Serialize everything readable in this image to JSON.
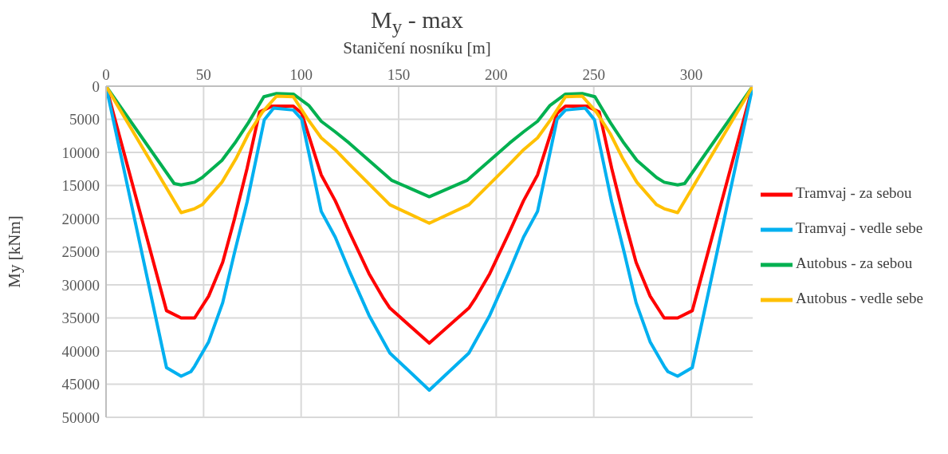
{
  "chart_data": {
    "type": "line",
    "title": "M$_{y}$ - max",
    "xlabel": "Staničení nosníku [m]",
    "ylabel": "My [kNm]",
    "xlim": [
      0,
      331.5
    ],
    "xticks": [
      0,
      50,
      100,
      150,
      200,
      250,
      300
    ],
    "ylim": [
      50000,
      0
    ],
    "yticks": [
      0,
      5000,
      10000,
      15000,
      20000,
      25000,
      30000,
      35000,
      40000,
      45000,
      50000
    ],
    "grid": true,
    "legend": "right",
    "marker": "none",
    "line_style": "solid",
    "series": [
      {
        "name": "Tramvaj - za sebou",
        "color": "#ff0000",
        "x": [
          0,
          31,
          38.5,
          45.4,
          52.6,
          59.8,
          65.8,
          72.3,
          78.7,
          85.2,
          96,
          100.3,
          110.3,
          117.5,
          124.7,
          134.8,
          141.9,
          145.5,
          165.7,
          186,
          189.6,
          196.7,
          206.8,
          214,
          221.2,
          231.2,
          235.5,
          246.3,
          252.8,
          259.2,
          265.7,
          271.7,
          278.9,
          286.1,
          293,
          300.5,
          331.5
        ],
        "values": [
          0,
          33900,
          35000,
          35000,
          31700,
          26600,
          20100,
          12400,
          3900,
          3000,
          3000,
          4100,
          13400,
          17300,
          22000,
          28300,
          31900,
          33500,
          38800,
          33500,
          31900,
          28300,
          22000,
          17300,
          13400,
          4100,
          3000,
          3000,
          3900,
          12400,
          20100,
          26600,
          31700,
          35000,
          35000,
          33900,
          0
        ]
      },
      {
        "name": "Tramvaj - vedle sebe",
        "color": "#00b0f0",
        "x": [
          0,
          31,
          38.5,
          43.5,
          45.4,
          52.6,
          59.8,
          65.8,
          72.3,
          81.1,
          85.9,
          96,
          100.3,
          110.3,
          117.5,
          124.7,
          134.8,
          145.5,
          165.7,
          186,
          196.7,
          206.8,
          214,
          221.2,
          231.2,
          235.5,
          245.6,
          250.4,
          259.2,
          265.7,
          271.7,
          278.9,
          286.1,
          288,
          293,
          300.5,
          331.5
        ],
        "values": [
          0,
          42500,
          43800,
          43100,
          42300,
          38600,
          32700,
          25200,
          17500,
          5100,
          3300,
          3600,
          5000,
          18900,
          22800,
          27900,
          34600,
          40300,
          45900,
          40300,
          34600,
          27900,
          22800,
          18900,
          5000,
          3600,
          3300,
          5100,
          17500,
          25200,
          32700,
          38600,
          42300,
          43100,
          43800,
          42500,
          0
        ]
      },
      {
        "name": "Autobus - za sebou",
        "color": "#00b050",
        "x": [
          0,
          34.9,
          38.5,
          45.4,
          49.3,
          59.4,
          66.5,
          73,
          80.9,
          87.4,
          96,
          103.9,
          110.3,
          117.5,
          124.7,
          146.3,
          165.7,
          185.2,
          206.8,
          214,
          221.2,
          227.6,
          235.5,
          244.1,
          250.6,
          258.5,
          265,
          272.1,
          282.2,
          286.1,
          293,
          296.6,
          331.5
        ],
        "values": [
          0,
          14700,
          14900,
          14500,
          13800,
          11200,
          8400,
          5500,
          1600,
          1100,
          1200,
          2900,
          5300,
          6900,
          8600,
          14200,
          16700,
          14200,
          8600,
          6900,
          5300,
          2900,
          1200,
          1100,
          1600,
          5500,
          8400,
          11200,
          13800,
          14500,
          14900,
          14700,
          0
        ]
      },
      {
        "name": "Autobus - vedle sebe",
        "color": "#ffc000",
        "x": [
          0,
          38.5,
          45.4,
          49.3,
          59.4,
          66.5,
          73,
          80.2,
          87.4,
          96,
          103.2,
          110.3,
          117.5,
          124.7,
          145.5,
          165.7,
          186,
          206.8,
          214,
          221.2,
          228.3,
          235.5,
          244.1,
          251.3,
          258.5,
          265,
          272.1,
          282.2,
          286.1,
          293,
          331.5
        ],
        "values": [
          0,
          19100,
          18500,
          17900,
          14500,
          11000,
          7200,
          3900,
          1500,
          1600,
          4900,
          7800,
          9600,
          11800,
          17900,
          20700,
          17900,
          11800,
          9600,
          7800,
          4900,
          1600,
          1500,
          3900,
          7200,
          11000,
          14500,
          17900,
          18500,
          19100,
          0
        ]
      }
    ]
  }
}
